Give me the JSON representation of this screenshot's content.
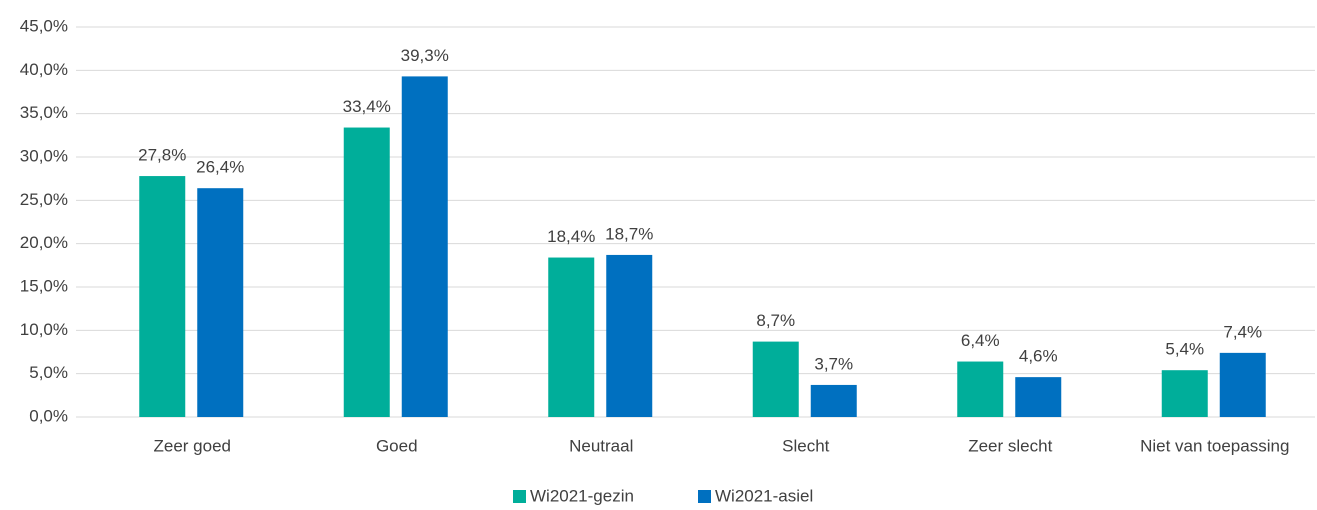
{
  "chart_data": {
    "type": "bar",
    "categories": [
      "Zeer goed",
      "Goed",
      "Neutraal",
      "Slecht",
      "Zeer slecht",
      "Niet van toepassing"
    ],
    "series": [
      {
        "name": "Wi2021-gezin",
        "color": "#00ae9a",
        "values": [
          27.8,
          33.4,
          18.4,
          8.7,
          6.4,
          5.4
        ],
        "value_labels": [
          "27,8%",
          "33,4%",
          "18,4%",
          "8,7%",
          "6,4%",
          "5,4%"
        ]
      },
      {
        "name": "Wi2021-asiel",
        "color": "#0070c0",
        "values": [
          26.4,
          39.3,
          18.7,
          3.7,
          4.6,
          7.4
        ],
        "value_labels": [
          "26,4%",
          "39,3%",
          "18,7%",
          "3,7%",
          "4,6%",
          "7,4%"
        ]
      }
    ],
    "ylim": [
      0,
      45
    ],
    "yticks": [
      {
        "value": 0,
        "label": "0,0%"
      },
      {
        "value": 5,
        "label": "5,0%"
      },
      {
        "value": 10,
        "label": "10,0%"
      },
      {
        "value": 15,
        "label": "15,0%"
      },
      {
        "value": 20,
        "label": "20,0%"
      },
      {
        "value": 25,
        "label": "25,0%"
      },
      {
        "value": 30,
        "label": "30,0%"
      },
      {
        "value": 35,
        "label": "35,0%"
      },
      {
        "value": 40,
        "label": "40,0%"
      },
      {
        "value": 45,
        "label": "45,0%"
      }
    ],
    "grid": true,
    "legend": "bottom"
  }
}
